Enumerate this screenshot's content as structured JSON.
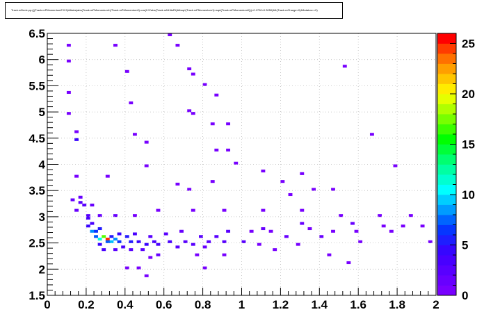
{
  "chart_data": {
    "type": "heatmap",
    "title": "Track.mDedx.pp:(((Track.mPMomentum2*0.5)&&abs(abs(Track.mPMomentum1)/Track.mPMomentum0)-cos(0.5*abs(Track.mNHitsFit)&&sqrt(Track.mPMomentum1)>sqrt(Track.mPMomentum0)))<0.1700<0.3050)&&(Track.mCharge>0)&&status==0)",
    "xlabel": "",
    "ylabel": "",
    "xlim": [
      0,
      2
    ],
    "ylim": [
      1.5,
      6.5
    ],
    "zlim": [
      0,
      26
    ],
    "x_ticks": [
      "0",
      "0.2",
      "0.4",
      "0.6",
      "0.8",
      "1",
      "1.2",
      "1.4",
      "1.6",
      "1.8",
      "2"
    ],
    "y_ticks": [
      "1.5",
      "2",
      "2.5",
      "3",
      "3.5",
      "4",
      "4.5",
      "5",
      "5.5",
      "6",
      "6.5"
    ],
    "z_ticks": [
      "0",
      "5",
      "10",
      "15",
      "20",
      "25"
    ],
    "grid": true,
    "colorbar": "right",
    "bins": {
      "x_edges": [
        0,
        2
      ],
      "nx": 100,
      "y_edges": [
        1.5,
        6.5
      ],
      "ny": 100,
      "cells": [
        [
          0.31,
          2.58,
          26
        ],
        [
          0.28,
          2.62,
          18
        ],
        [
          0.26,
          2.58,
          12
        ],
        [
          0.33,
          2.55,
          10
        ],
        [
          0.25,
          2.65,
          8
        ],
        [
          0.3,
          2.5,
          8
        ],
        [
          0.35,
          2.58,
          9
        ],
        [
          0.37,
          2.52,
          7
        ],
        [
          0.4,
          2.6,
          6
        ],
        [
          0.43,
          2.55,
          6
        ],
        [
          0.22,
          2.72,
          9
        ],
        [
          0.24,
          2.7,
          7
        ],
        [
          0.27,
          2.76,
          6
        ],
        [
          0.21,
          2.82,
          5
        ],
        [
          0.23,
          2.88,
          4
        ],
        [
          0.2,
          2.95,
          4
        ],
        [
          0.46,
          2.5,
          5
        ],
        [
          0.5,
          2.48,
          5
        ],
        [
          0.54,
          2.52,
          4
        ],
        [
          0.58,
          2.45,
          4
        ],
        [
          0.62,
          2.5,
          4
        ],
        [
          0.66,
          2.42,
          3
        ],
        [
          0.7,
          2.55,
          3
        ],
        [
          0.74,
          2.48,
          3
        ],
        [
          0.78,
          2.6,
          3
        ],
        [
          0.82,
          2.52,
          3
        ],
        [
          0.9,
          2.55,
          3
        ],
        [
          1.0,
          2.52,
          3
        ],
        [
          0.38,
          2.42,
          4
        ],
        [
          0.42,
          2.38,
          3
        ],
        [
          0.48,
          2.35,
          3
        ],
        [
          0.56,
          2.3,
          2
        ],
        [
          0.34,
          2.35,
          3
        ],
        [
          0.29,
          2.4,
          4
        ],
        [
          0.27,
          2.45,
          5
        ],
        [
          0.32,
          2.65,
          6
        ],
        [
          0.36,
          2.68,
          5
        ],
        [
          0.44,
          2.66,
          4
        ],
        [
          0.52,
          2.62,
          3
        ],
        [
          0.6,
          2.68,
          3
        ],
        [
          0.68,
          2.7,
          2
        ],
        [
          0.1,
          6.25,
          1
        ],
        [
          0.34,
          6.25,
          1
        ],
        [
          0.62,
          6.45,
          1
        ],
        [
          0.66,
          6.25,
          1
        ],
        [
          0.1,
          5.98,
          1
        ],
        [
          0.72,
          5.85,
          1
        ],
        [
          0.74,
          5.72,
          1
        ],
        [
          1.52,
          5.88,
          1
        ],
        [
          0.4,
          5.78,
          1
        ],
        [
          0.8,
          5.52,
          1
        ],
        [
          0.1,
          5.38,
          1
        ],
        [
          0.86,
          5.35,
          1
        ],
        [
          0.42,
          5.15,
          1
        ],
        [
          0.72,
          5.05,
          1
        ],
        [
          0.1,
          4.95,
          1
        ],
        [
          0.74,
          4.95,
          1
        ],
        [
          0.84,
          4.75,
          1
        ],
        [
          0.94,
          4.75,
          1
        ],
        [
          1.66,
          4.6,
          1
        ],
        [
          0.14,
          4.62,
          1
        ],
        [
          0.44,
          4.6,
          1
        ],
        [
          0.5,
          4.4,
          1
        ],
        [
          0.86,
          4.3,
          1
        ],
        [
          0.94,
          4.3,
          1
        ],
        [
          0.14,
          4.45,
          5
        ],
        [
          0.96,
          4.0,
          1
        ],
        [
          1.1,
          3.9,
          1
        ],
        [
          1.3,
          3.82,
          1
        ],
        [
          1.78,
          3.95,
          1
        ],
        [
          0.5,
          3.95,
          1
        ],
        [
          0.3,
          3.8,
          1
        ],
        [
          0.14,
          3.75,
          1
        ],
        [
          1.2,
          3.68,
          1
        ],
        [
          1.36,
          3.55,
          1
        ],
        [
          1.46,
          3.55,
          1
        ],
        [
          0.84,
          3.68,
          1
        ],
        [
          0.72,
          3.55,
          1
        ],
        [
          0.66,
          3.65,
          1
        ],
        [
          1.24,
          3.42,
          1
        ],
        [
          0.12,
          3.32,
          2
        ],
        [
          0.16,
          3.3,
          3
        ],
        [
          0.18,
          3.2,
          3
        ],
        [
          0.14,
          3.1,
          2
        ],
        [
          0.22,
          3.2,
          2
        ],
        [
          0.16,
          3.4,
          2
        ],
        [
          0.2,
          3.05,
          3
        ],
        [
          0.26,
          3.05,
          2
        ],
        [
          0.34,
          3.05,
          2
        ],
        [
          0.44,
          3.05,
          1
        ],
        [
          0.56,
          3.15,
          1
        ],
        [
          0.74,
          3.15,
          1
        ],
        [
          0.9,
          3.15,
          1
        ],
        [
          1.1,
          3.15,
          1
        ],
        [
          1.3,
          3.15,
          1
        ],
        [
          1.5,
          3.05,
          1
        ],
        [
          1.7,
          3.05,
          1
        ],
        [
          1.86,
          3.05,
          1
        ],
        [
          1.3,
          2.85,
          2
        ],
        [
          1.56,
          2.85,
          2
        ],
        [
          1.72,
          2.82,
          1
        ],
        [
          1.82,
          2.82,
          1
        ],
        [
          1.92,
          2.82,
          1
        ],
        [
          1.1,
          2.75,
          2
        ],
        [
          1.4,
          2.62,
          2
        ],
        [
          1.6,
          2.55,
          1
        ],
        [
          1.96,
          2.55,
          1
        ],
        [
          1.22,
          2.62,
          2
        ],
        [
          0.94,
          2.72,
          3
        ],
        [
          0.86,
          2.62,
          3
        ],
        [
          0.8,
          2.42,
          2
        ],
        [
          1.08,
          2.45,
          1
        ],
        [
          1.28,
          2.45,
          1
        ],
        [
          0.52,
          2.2,
          1
        ],
        [
          0.76,
          2.25,
          1
        ],
        [
          0.9,
          2.3,
          1
        ],
        [
          1.18,
          2.35,
          1
        ],
        [
          1.44,
          2.25,
          1
        ],
        [
          1.54,
          2.1,
          1
        ],
        [
          0.4,
          2.0,
          1
        ],
        [
          0.46,
          2.0,
          1
        ],
        [
          0.8,
          2.0,
          1
        ],
        [
          0.5,
          1.9,
          1
        ],
        [
          1.04,
          2.72,
          1
        ],
        [
          1.16,
          2.72,
          1
        ],
        [
          1.34,
          2.75,
          1
        ],
        [
          1.46,
          2.72,
          1
        ],
        [
          1.58,
          2.72,
          1
        ],
        [
          1.76,
          2.72,
          1
        ]
      ]
    }
  }
}
